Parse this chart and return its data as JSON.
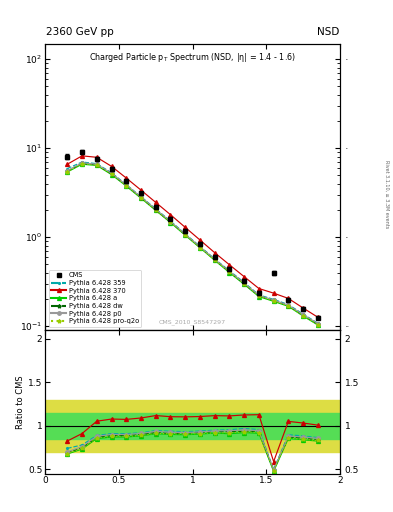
{
  "title_top": "2360 GeV pp",
  "title_top_right": "NSD",
  "plot_title": "Charged Particle p_{T} Spectrum (NSD, |#eta| = 1.4 - 1.6)",
  "ylabel_bottom": "Ratio to CMS",
  "watermark": "CMS_2010_S8547297",
  "right_label": "Rivet 3.1.10, ≥ 3.3M events",
  "pt_bins": [
    0.15,
    0.25,
    0.35,
    0.45,
    0.55,
    0.65,
    0.75,
    0.85,
    0.95,
    1.05,
    1.15,
    1.25,
    1.35,
    1.45,
    1.55,
    1.65,
    1.75,
    1.85
  ],
  "cms_y": [
    8.0,
    9.0,
    7.5,
    5.8,
    4.3,
    3.1,
    2.2,
    1.62,
    1.17,
    0.84,
    0.6,
    0.44,
    0.32,
    0.235,
    0.4,
    0.195,
    0.155,
    0.125
  ],
  "cms_yerr": [
    0.5,
    0.5,
    0.4,
    0.3,
    0.22,
    0.16,
    0.11,
    0.08,
    0.06,
    0.042,
    0.03,
    0.022,
    0.016,
    0.012,
    0.02,
    0.01,
    0.008,
    0.006
  ],
  "p359_y": [
    5.9,
    7.0,
    6.7,
    5.3,
    3.9,
    2.85,
    2.08,
    1.52,
    1.09,
    0.79,
    0.57,
    0.42,
    0.31,
    0.225,
    0.2,
    0.175,
    0.137,
    0.108
  ],
  "p370_y": [
    6.6,
    8.2,
    7.9,
    6.25,
    4.62,
    3.38,
    2.46,
    1.79,
    1.29,
    0.93,
    0.67,
    0.49,
    0.36,
    0.265,
    0.235,
    0.205,
    0.16,
    0.126
  ],
  "pa_y": [
    5.4,
    6.6,
    6.4,
    5.05,
    3.75,
    2.74,
    2.0,
    1.46,
    1.05,
    0.76,
    0.55,
    0.4,
    0.295,
    0.215,
    0.19,
    0.167,
    0.13,
    0.103
  ],
  "pdw_y": [
    5.5,
    6.75,
    6.5,
    5.15,
    3.82,
    2.79,
    2.03,
    1.48,
    1.07,
    0.775,
    0.56,
    0.41,
    0.3,
    0.22,
    0.195,
    0.17,
    0.133,
    0.105
  ],
  "pp0_y": [
    5.6,
    6.85,
    6.6,
    5.22,
    3.87,
    2.83,
    2.06,
    1.5,
    1.08,
    0.78,
    0.565,
    0.415,
    0.305,
    0.222,
    0.197,
    0.172,
    0.135,
    0.107
  ],
  "pq2o_y": [
    5.45,
    6.65,
    6.45,
    5.1,
    3.78,
    2.76,
    2.01,
    1.47,
    1.06,
    0.765,
    0.552,
    0.405,
    0.298,
    0.217,
    0.192,
    0.168,
    0.131,
    0.104
  ],
  "ratio_359": [
    0.74,
    0.78,
    0.89,
    0.91,
    0.91,
    0.92,
    0.945,
    0.938,
    0.932,
    0.94,
    0.95,
    0.955,
    0.969,
    0.957,
    0.5,
    0.897,
    0.884,
    0.864
  ],
  "ratio_370": [
    0.825,
    0.911,
    1.053,
    1.078,
    1.074,
    1.09,
    1.118,
    1.105,
    1.103,
    1.107,
    1.117,
    1.114,
    1.125,
    1.128,
    0.588,
    1.051,
    1.032,
    1.008
  ],
  "ratio_a": [
    0.675,
    0.733,
    0.853,
    0.871,
    0.872,
    0.884,
    0.909,
    0.901,
    0.897,
    0.905,
    0.917,
    0.909,
    0.922,
    0.915,
    0.475,
    0.856,
    0.839,
    0.824
  ],
  "ratio_dw": [
    0.688,
    0.75,
    0.867,
    0.888,
    0.888,
    0.9,
    0.923,
    0.914,
    0.915,
    0.923,
    0.933,
    0.932,
    0.938,
    0.936,
    0.488,
    0.872,
    0.858,
    0.84
  ],
  "ratio_p0": [
    0.7,
    0.761,
    0.88,
    0.9,
    0.9,
    0.913,
    0.936,
    0.926,
    0.923,
    0.929,
    0.942,
    0.943,
    0.953,
    0.945,
    0.493,
    0.882,
    0.871,
    0.856
  ],
  "ratio_q2o": [
    0.681,
    0.739,
    0.86,
    0.879,
    0.879,
    0.89,
    0.913,
    0.908,
    0.906,
    0.911,
    0.92,
    0.92,
    0.931,
    0.923,
    0.48,
    0.862,
    0.845,
    0.832
  ],
  "band_yellow_lo": 0.7,
  "band_yellow_hi": 1.3,
  "band_green_lo": 0.85,
  "band_green_hi": 1.15,
  "color_cms": "#000000",
  "color_359": "#00aaaa",
  "color_370": "#cc0000",
  "color_a": "#00cc00",
  "color_dw": "#006600",
  "color_p0": "#999999",
  "color_q2o": "#99cc00",
  "band_inner_color": "#55dd55",
  "band_outer_color": "#dddd44",
  "xlim": [
    0,
    2
  ],
  "ylim_top_lo": 0.09,
  "ylim_top_hi": 150,
  "ylim_bottom_lo": 0.45,
  "ylim_bottom_hi": 2.1
}
